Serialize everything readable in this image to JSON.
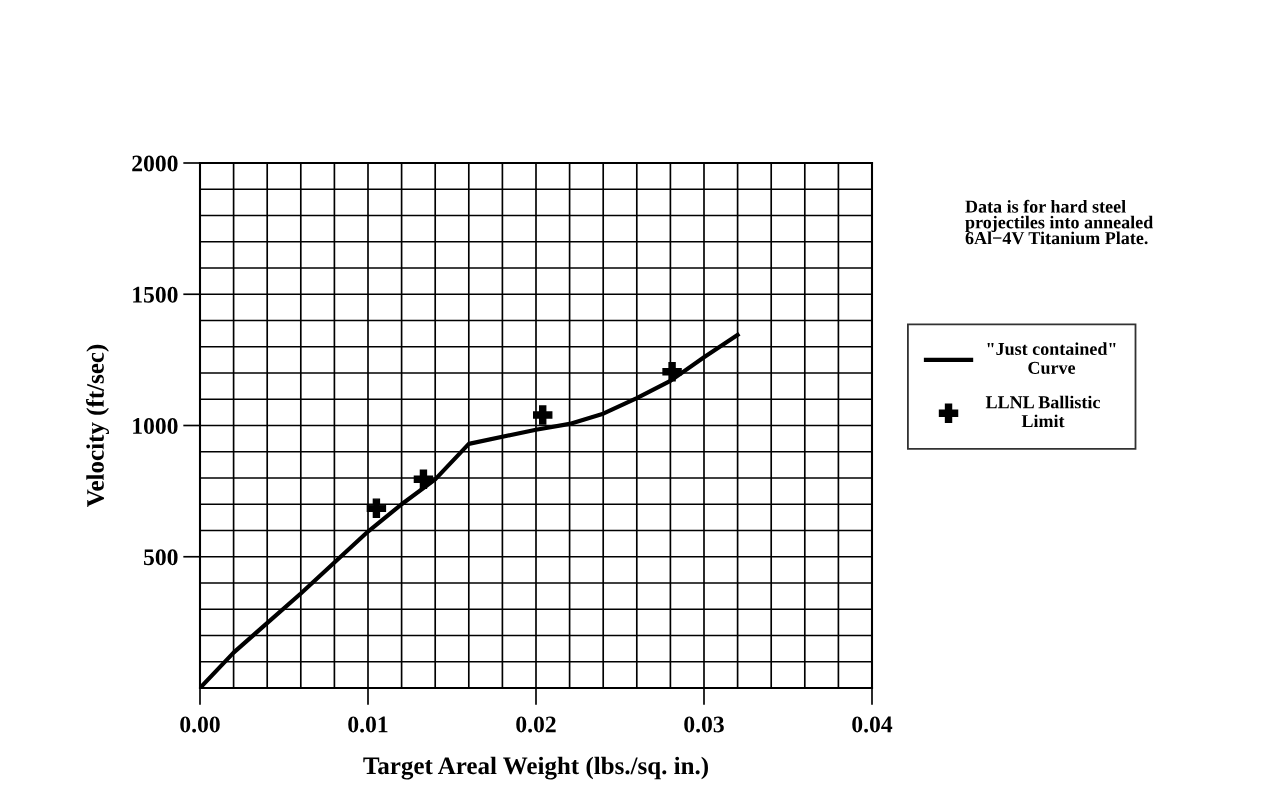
{
  "chart_data": {
    "type": "line",
    "xlabel": "Target Areal Weight (lbs./sq. in.)",
    "ylabel": "Velocity (ft/sec)",
    "annotations": [
      "Data is for hard steel\nprojectiles into annealed\n6Al−4V Titanium Plate."
    ],
    "series": [
      {
        "name": "\"Just contained\"\nCurve",
        "color": "#000000",
        "marker": "none",
        "line_style": "solid",
        "x": [
          0,
          0.002,
          0.006,
          0.01,
          0.012,
          0.014,
          0.016,
          0.02,
          0.022,
          0.024,
          0.026,
          0.028,
          0.03,
          0.032
        ],
        "values": [
          0,
          135,
          360,
          596,
          700,
          795,
          930,
          984,
          1006,
          1045,
          1104,
          1170,
          1260,
          1345
        ]
      },
      {
        "name": "LLNL Ballistic\nLimit",
        "type": "scatter",
        "color": "#000000",
        "marker": "cross",
        "x": [
          0.0105,
          0.0133,
          0.0204,
          0.0281
        ],
        "values": [
          685,
          795,
          1040,
          1205
        ]
      }
    ],
    "xlim": [
      0,
      0.04
    ],
    "ylim": [
      0,
      2000
    ],
    "xticks": [
      {
        "value": 0,
        "label": "0.00"
      },
      {
        "value": 0.002,
        "label": null
      },
      {
        "value": 0.004,
        "label": null
      },
      {
        "value": 0.006,
        "label": null
      },
      {
        "value": 0.008,
        "label": null
      },
      {
        "value": 0.01,
        "label": "0.01"
      },
      {
        "value": 0.012,
        "label": null
      },
      {
        "value": 0.014,
        "label": null
      },
      {
        "value": 0.016,
        "label": null
      },
      {
        "value": 0.018,
        "label": null
      },
      {
        "value": 0.02,
        "label": "0.02"
      },
      {
        "value": 0.022,
        "label": null
      },
      {
        "value": 0.024,
        "label": null
      },
      {
        "value": 0.026,
        "label": null
      },
      {
        "value": 0.028,
        "label": null
      },
      {
        "value": 0.03,
        "label": "0.03"
      },
      {
        "value": 0.032,
        "label": null
      },
      {
        "value": 0.034,
        "label": null
      },
      {
        "value": 0.036,
        "label": null
      },
      {
        "value": 0.038,
        "label": null
      },
      {
        "value": 0.04,
        "label": "0.04"
      }
    ],
    "yticks": [
      {
        "value": 100,
        "label": null
      },
      {
        "value": 200,
        "label": null
      },
      {
        "value": 300,
        "label": null
      },
      {
        "value": 400,
        "label": null
      },
      500,
      {
        "value": 600,
        "label": null
      },
      {
        "value": 700,
        "label": null
      },
      {
        "value": 800,
        "label": null
      },
      {
        "value": 900,
        "label": null
      },
      1000,
      {
        "value": 1100,
        "label": null
      },
      {
        "value": 1200,
        "label": null
      },
      {
        "value": 1300,
        "label": null
      },
      {
        "value": 1400,
        "label": null
      },
      1500,
      {
        "value": 1600,
        "label": null
      },
      {
        "value": 1700,
        "label": null
      },
      {
        "value": 1800,
        "label": null
      },
      {
        "value": 1900,
        "label": null
      },
      2000
    ],
    "grid": true,
    "legend": "right"
  }
}
